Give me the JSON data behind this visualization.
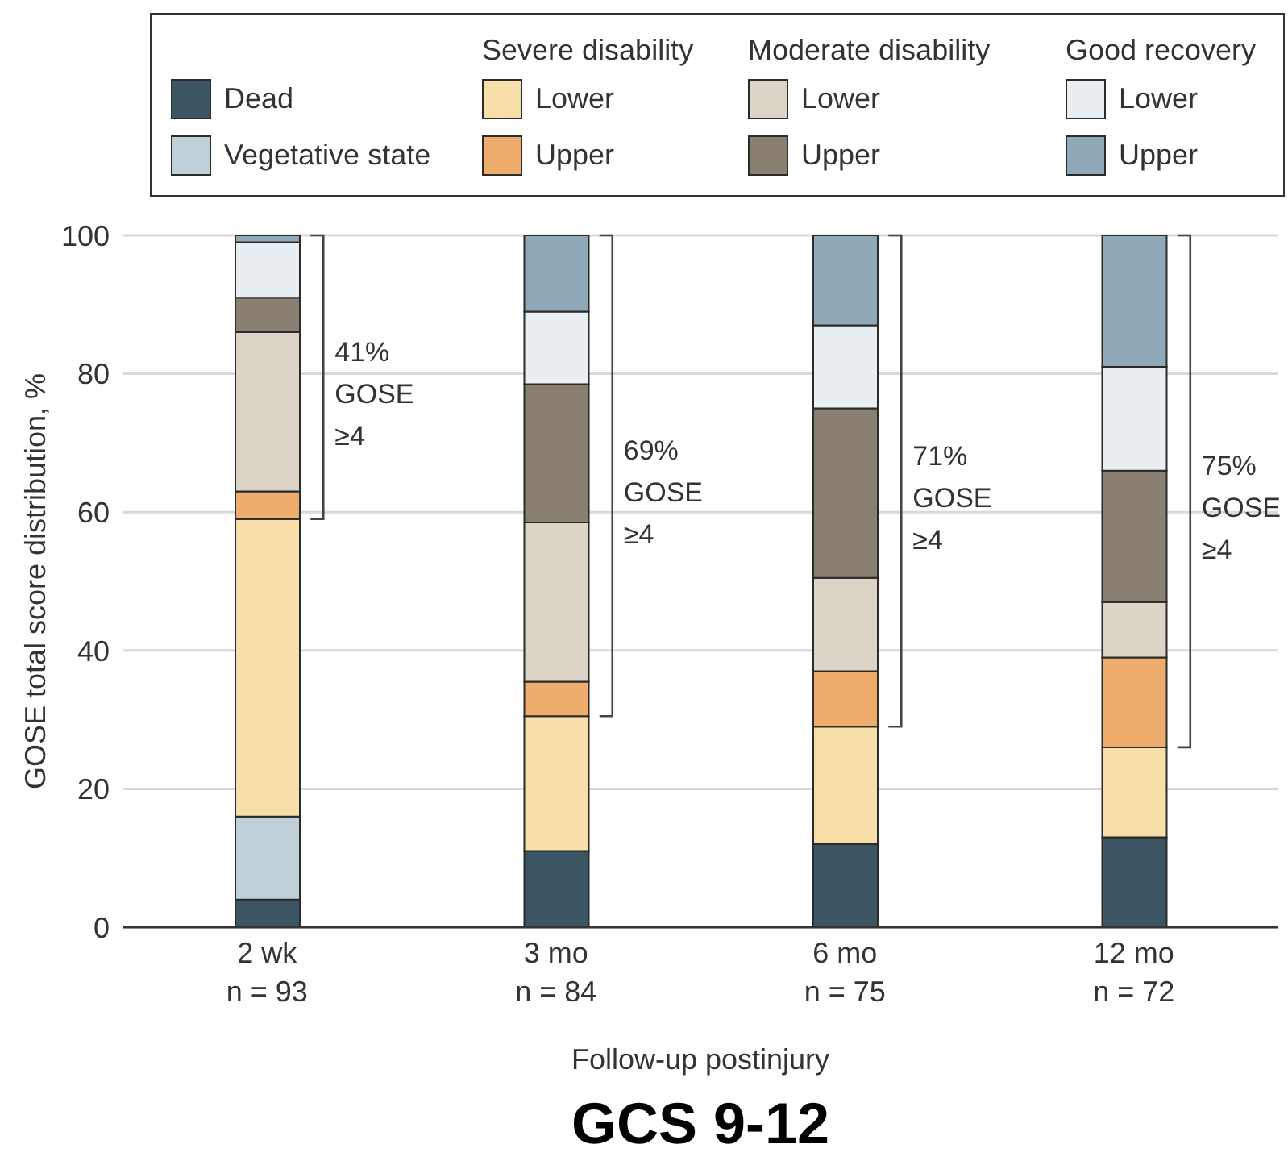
{
  "chart_data": {
    "type": "bar",
    "title": "GCS 9-12",
    "xlabel": "Follow-up postinjury",
    "ylabel": "GOSE total score distribution, %",
    "categories": [
      "2 wk\nn = 93",
      "3 mo\nn = 84",
      "6 mo\nn = 75",
      "12 mo\nn = 72"
    ],
    "series": [
      {
        "name": "Dead",
        "color": "#3b5562",
        "values": [
          4,
          11,
          12,
          13
        ]
      },
      {
        "name": "Vegetative state",
        "color": "#bfd0d8",
        "values": [
          12,
          0,
          0,
          0
        ]
      },
      {
        "name": "Lower",
        "color": "#f8dfaa",
        "values": [
          43,
          19.5,
          17,
          13
        ]
      },
      {
        "name": "Upper",
        "color": "#eead6c",
        "values": [
          4,
          5,
          8,
          13
        ]
      },
      {
        "name": "Lower",
        "color": "#dcd4c7",
        "values": [
          23,
          23,
          13.5,
          8
        ]
      },
      {
        "name": "Upper",
        "color": "#898071",
        "values": [
          5,
          20,
          24.5,
          19
        ]
      },
      {
        "name": "Lower",
        "color": "#e8eef1",
        "values": [
          8,
          10.5,
          12,
          15
        ]
      },
      {
        "name": "Upper",
        "color": "#8fa9b8",
        "values": [
          1,
          11,
          13,
          19
        ]
      }
    ],
    "stacked": true,
    "ylim": [
      0,
      100
    ],
    "yticks": [
      0,
      20,
      40,
      60,
      80,
      100
    ],
    "grid": "y",
    "legend": "top",
    "annotations": [
      "Severe disability",
      "Moderate disability",
      "Good recovery",
      "41% GOSE ≥4",
      "69% GOSE ≥4",
      "71% GOSE ≥4",
      "75% GOSE ≥4"
    ]
  }
}
